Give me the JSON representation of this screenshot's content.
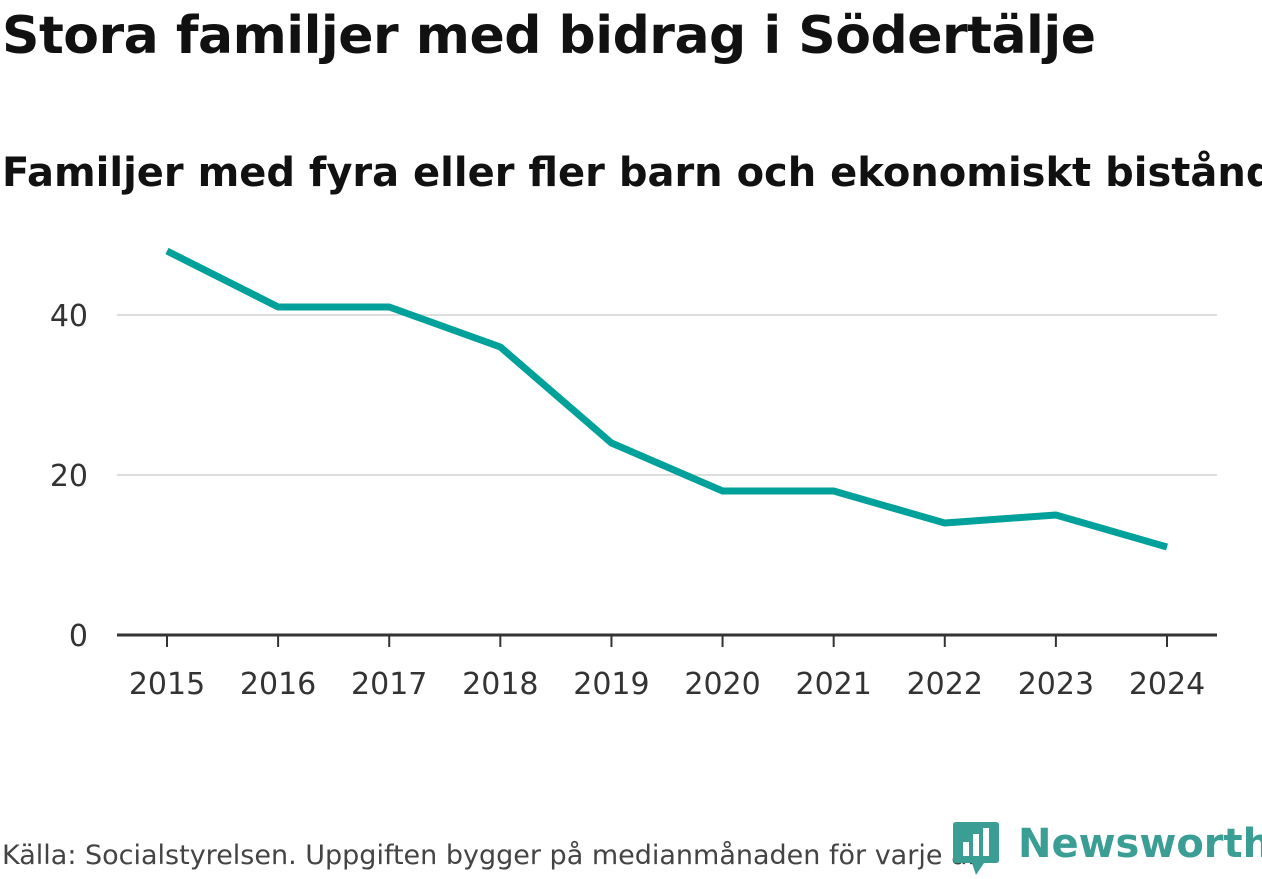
{
  "title": "Stora familjer med bidrag i Södertälje",
  "subtitle": "Familjer med fyra eller fler barn och ekonomiskt bistånd",
  "source": "Källa: Socialstyrelsen. Uppgiften bygger på medianmånaden för varje år",
  "logo": {
    "text": "Newsworthy",
    "color": "#3a9e95",
    "icon": "newsworthy-logo-icon"
  },
  "colors": {
    "line": "#00a19a",
    "grid": "#dddddd",
    "axis": "#333333"
  },
  "chart_data": {
    "type": "line",
    "title": "Stora familjer med bidrag i Södertälje",
    "subtitle": "Familjer med fyra eller fler barn och ekonomiskt bistånd",
    "xlabel": "",
    "ylabel": "",
    "categories": [
      "2015",
      "2016",
      "2017",
      "2018",
      "2019",
      "2020",
      "2021",
      "2022",
      "2023",
      "2024"
    ],
    "series": [
      {
        "name": "Familjer med fyra eller fler barn och ekonomiskt bistånd",
        "values": [
          48,
          41,
          41,
          36,
          24,
          18,
          18,
          14,
          15,
          11
        ]
      }
    ],
    "yticks": [
      0,
      20,
      40
    ],
    "ylim": [
      0,
      50
    ],
    "grid": true,
    "legend": "none"
  }
}
